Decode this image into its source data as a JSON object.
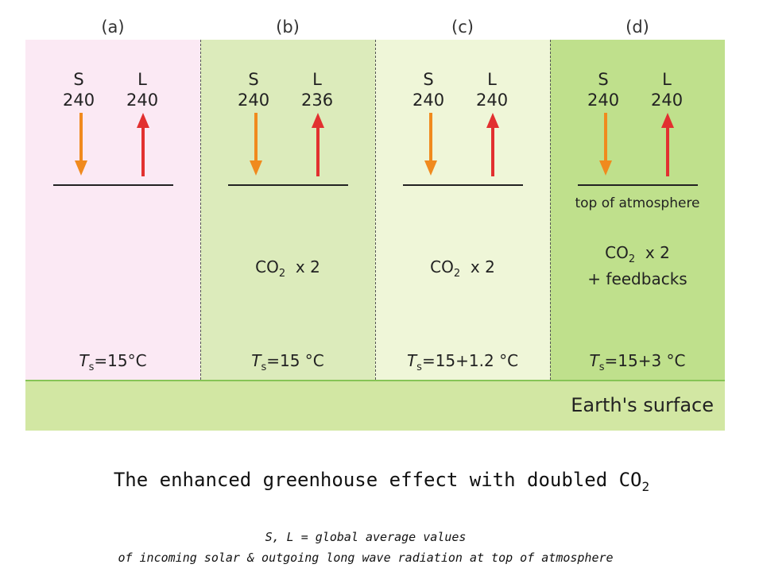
{
  "panels": [
    {
      "label": "(a)",
      "s_letter": "S",
      "l_letter": "L",
      "s_value": "240",
      "l_value": "240",
      "co2_prefix": "",
      "co2_sub": "",
      "co2_suffix": "",
      "feedbacks": "",
      "atm_label": "",
      "temp_prefix": "T",
      "temp_sub": "s",
      "temp_suffix": "=15°C",
      "background": "#fbe9f4"
    },
    {
      "label": "(b)",
      "s_letter": "S",
      "l_letter": "L",
      "s_value": "240",
      "l_value": "236",
      "co2_prefix": "CO",
      "co2_sub": "2",
      "co2_suffix": "  x 2",
      "feedbacks": "",
      "atm_label": "",
      "temp_prefix": "T",
      "temp_sub": "s",
      "temp_suffix": "=15 °C",
      "background": "#dcebbb"
    },
    {
      "label": "(c)",
      "s_letter": "S",
      "l_letter": "L",
      "s_value": "240",
      "l_value": "240",
      "co2_prefix": "CO",
      "co2_sub": "2",
      "co2_suffix": "  x 2",
      "feedbacks": "",
      "atm_label": "",
      "temp_prefix": "T",
      "temp_sub": "s",
      "temp_suffix": "=15+1.2 °C",
      "background": "#eff6d8"
    },
    {
      "label": "(d)",
      "s_letter": "S",
      "l_letter": "L",
      "s_value": "240",
      "l_value": "240",
      "co2_prefix": "CO",
      "co2_sub": "2",
      "co2_suffix": "  x 2",
      "feedbacks": "+ feedbacks",
      "atm_label": "top of atmosphere",
      "temp_prefix": "T",
      "temp_sub": "s",
      "temp_suffix": "=15+3 °C",
      "background": "#bfe08c"
    }
  ],
  "surface_label": "Earth's surface",
  "caption_prefix": "The enhanced greenhouse effect with doubled CO",
  "caption_sub": "2",
  "note_line1": "S, L = global average values",
  "note_line2": "of incoming solar & outgoing long wave radiation at top of atmosphere",
  "colors": {
    "solar_arrow": "#f08a1e",
    "longwave_arrow": "#e23030",
    "divider": "#555555",
    "surface": "#d2e7a3"
  }
}
